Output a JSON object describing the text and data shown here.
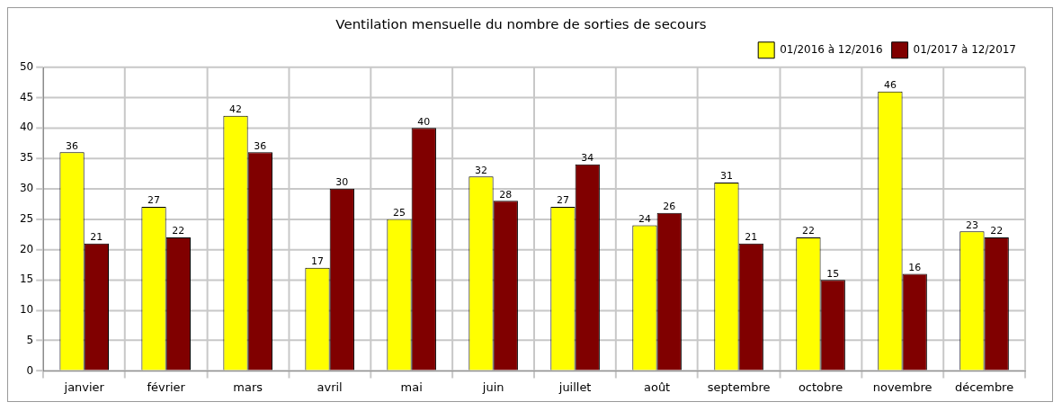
{
  "chart_data": {
    "type": "bar",
    "title": "Ventilation mensuelle du nombre de sorties de secours",
    "categories": [
      "janvier",
      "février",
      "mars",
      "avril",
      "mai",
      "juin",
      "juillet",
      "août",
      "septembre",
      "octobre",
      "novembre",
      "décembre"
    ],
    "series": [
      {
        "name": "01/2016 à 12/2016",
        "color": "#ffff00",
        "values": [
          36,
          27,
          42,
          17,
          25,
          32,
          27,
          24,
          31,
          22,
          46,
          23
        ]
      },
      {
        "name": "01/2017 à 12/2017",
        "color": "#800000",
        "values": [
          21,
          22,
          36,
          30,
          40,
          28,
          34,
          26,
          21,
          15,
          16,
          22
        ]
      }
    ],
    "ylim": [
      0,
      50
    ],
    "yticks": [
      0,
      5,
      10,
      15,
      20,
      25,
      30,
      35,
      40,
      45,
      50
    ],
    "grid": true,
    "legend": "top right",
    "data_labels": true
  }
}
